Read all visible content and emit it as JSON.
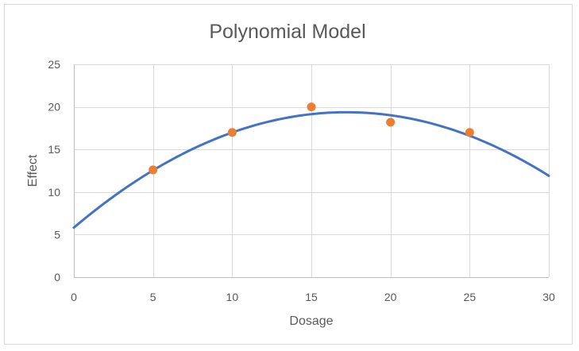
{
  "chart_data": {
    "type": "scatter",
    "title": "Polynomial Model",
    "xlabel": "Dosage",
    "ylabel": "Effect",
    "xlim": [
      0,
      30
    ],
    "ylim": [
      0,
      25
    ],
    "x_ticks": [
      0,
      5,
      10,
      15,
      20,
      25,
      30
    ],
    "y_ticks": [
      0,
      5,
      10,
      15,
      20,
      25
    ],
    "grid": true,
    "legend": "none",
    "points": {
      "x": [
        5,
        10,
        15,
        20,
        25
      ],
      "y": [
        12.6,
        17.0,
        20.0,
        18.2,
        17.0
      ],
      "color": "#ed7d31"
    },
    "trendline": {
      "type": "polynomial",
      "order": 2,
      "coefficients": [
        5.82,
        1.574,
        -0.0457
      ],
      "color": "#4472c4"
    }
  }
}
